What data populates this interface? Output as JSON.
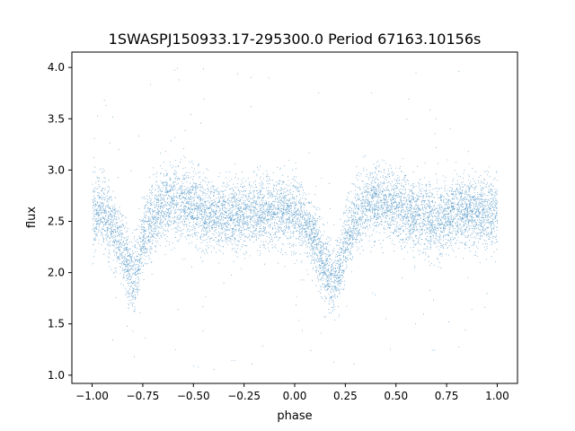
{
  "chart_data": {
    "type": "scatter",
    "title": "1SWASPJ150933.17-295300.0 Period 67163.10156s",
    "xlabel": "phase",
    "ylabel": "flux",
    "xlim": [
      -1.1,
      1.1
    ],
    "ylim": [
      0.92,
      4.15
    ],
    "x_ticks": [
      -1.0,
      -0.75,
      -0.5,
      -0.25,
      0.0,
      0.25,
      0.5,
      0.75,
      1.0
    ],
    "x_tick_labels": [
      "−1.00",
      "−0.75",
      "−0.50",
      "−0.25",
      "0.00",
      "0.25",
      "0.50",
      "0.75",
      "1.00"
    ],
    "y_ticks": [
      1.0,
      1.5,
      2.0,
      2.5,
      3.0,
      3.5,
      4.0
    ],
    "y_tick_labels": [
      "1.0",
      "1.5",
      "2.0",
      "2.5",
      "3.0",
      "3.5",
      "4.0"
    ],
    "grid": false,
    "legend": "none",
    "point_color": "#1f77b4",
    "series": [
      {
        "phase_range": [
          -1.0,
          1.0
        ],
        "x": [
          -1.0,
          -0.95,
          -0.9,
          -0.85,
          -0.82,
          -0.8,
          -0.78,
          -0.75,
          -0.7,
          -0.65,
          -0.6,
          -0.5,
          -0.4,
          -0.3,
          -0.2,
          -0.1,
          0.0,
          0.05,
          0.1,
          0.15,
          0.18,
          0.2,
          0.22,
          0.25,
          0.3,
          0.35,
          0.4,
          0.5,
          0.6,
          0.7,
          0.8,
          0.9,
          1.0
        ],
        "median_flux": [
          2.6,
          2.6,
          2.45,
          2.2,
          2.05,
          1.95,
          2.05,
          2.35,
          2.55,
          2.65,
          2.7,
          2.65,
          2.55,
          2.55,
          2.6,
          2.6,
          2.6,
          2.5,
          2.3,
          2.05,
          1.95,
          1.95,
          2.05,
          2.3,
          2.55,
          2.65,
          2.7,
          2.65,
          2.55,
          2.5,
          2.6,
          2.6,
          2.6
        ],
        "scatter_sd": 0.17,
        "outlier_range": [
          1.05,
          4.0
        ]
      }
    ]
  }
}
